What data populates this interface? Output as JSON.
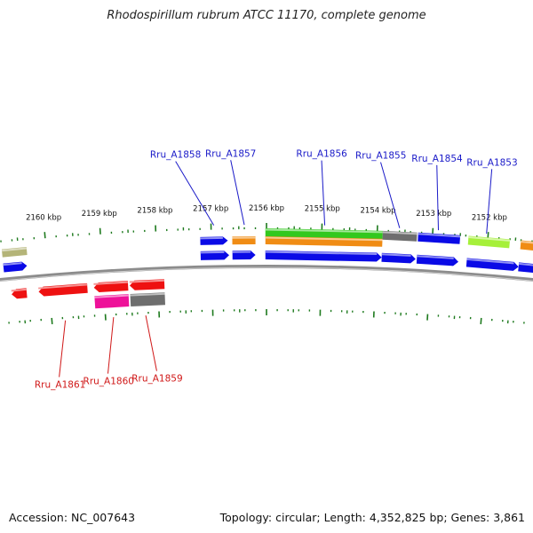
{
  "title": "Rhodospirillum rubrum ATCC 11170, complete genome",
  "accession_text": "Accession: NC_007643",
  "topology_text": "Topology: circular; Length: 4,352,825 bp; Genes: 3,861",
  "colors": {
    "forward_label": "#1a1ac8",
    "reverse_label": "#d01818",
    "tick": "#1e7a1e",
    "backbone": "#8c8c8c",
    "blue": "#0a0ae6",
    "orange": "#f08c14",
    "green": "#32c81e",
    "lime": "#a6f03a",
    "olive": "#b4b478",
    "gray": "#6e6e6e",
    "red": "#ee1111",
    "magenta": "#ee1199"
  },
  "kbp_labels": [
    {
      "kbp": 2160,
      "text": "2160 kbp"
    },
    {
      "kbp": 2159,
      "text": "2159 kbp"
    },
    {
      "kbp": 2158,
      "text": "2158 kbp"
    },
    {
      "kbp": 2157,
      "text": "2157 kbp"
    },
    {
      "kbp": 2156,
      "text": "2156 kbp"
    },
    {
      "kbp": 2155,
      "text": "2155 kbp"
    },
    {
      "kbp": 2154,
      "text": "2154 kbp"
    },
    {
      "kbp": 2153,
      "text": "2153 kbp"
    },
    {
      "kbp": 2152,
      "text": "2152 kbp"
    }
  ],
  "forward_genes": [
    {
      "start": 2160.8,
      "end": 2160.35,
      "row": 2,
      "color": "olive",
      "dir": "none"
    },
    {
      "start": 2160.8,
      "end": 2160.37,
      "row": 1,
      "color": "blue",
      "dir": "left"
    },
    {
      "start": 2157.2,
      "end": 2156.7,
      "row": 2,
      "color": "blue",
      "dir": "left"
    },
    {
      "start": 2157.2,
      "end": 2156.68,
      "row": 1,
      "color": "blue",
      "dir": "left"
    },
    {
      "start": 2156.62,
      "end": 2156.2,
      "row": 2,
      "color": "orange",
      "dir": "none"
    },
    {
      "start": 2156.62,
      "end": 2156.2,
      "row": 1,
      "color": "blue",
      "dir": "left"
    },
    {
      "start": 2156.02,
      "end": 2153.9,
      "row": 3,
      "color": "green",
      "dir": "none"
    },
    {
      "start": 2156.02,
      "end": 2153.9,
      "row": 2,
      "color": "orange",
      "dir": "none"
    },
    {
      "start": 2156.02,
      "end": 2153.9,
      "row": 1,
      "color": "blue",
      "dir": "left"
    },
    {
      "start": 2153.9,
      "end": 2153.28,
      "row": 3,
      "color": "gray",
      "dir": "none"
    },
    {
      "start": 2153.9,
      "end": 2153.28,
      "row": 1,
      "color": "blue",
      "dir": "left"
    },
    {
      "start": 2153.26,
      "end": 2152.5,
      "row": 3,
      "color": "blue",
      "dir": "none"
    },
    {
      "start": 2153.26,
      "end": 2152.5,
      "row": 1,
      "color": "blue",
      "dir": "left"
    },
    {
      "start": 2152.35,
      "end": 2151.6,
      "row": 3,
      "color": "lime",
      "dir": "none"
    },
    {
      "start": 2152.35,
      "end": 2151.4,
      "row": 1,
      "color": "blue",
      "dir": "left"
    },
    {
      "start": 2151.4,
      "end": 2150.7,
      "row": 3,
      "color": "orange",
      "dir": "none"
    },
    {
      "start": 2151.4,
      "end": 2150.7,
      "row": 1,
      "color": "blue",
      "dir": "left"
    }
  ],
  "reverse_genes": [
    {
      "start": 2160.7,
      "end": 2160.42,
      "row": 1,
      "color": "red",
      "dir": "right"
    },
    {
      "start": 2160.2,
      "end": 2159.3,
      "row": 1,
      "color": "red",
      "dir": "right"
    },
    {
      "start": 2159.18,
      "end": 2158.55,
      "row": 1,
      "color": "red",
      "dir": "right"
    },
    {
      "start": 2159.18,
      "end": 2158.55,
      "row": 2,
      "color": "magenta",
      "dir": "none"
    },
    {
      "start": 2158.52,
      "end": 2157.88,
      "row": 1,
      "color": "red",
      "dir": "right"
    },
    {
      "start": 2158.52,
      "end": 2157.88,
      "row": 2,
      "color": "gray",
      "dir": "none"
    }
  ],
  "gene_labels_forward": [
    {
      "text": "Rru_A1858",
      "gene_kbp": 2156.95,
      "label_kbp": 2157.6
    },
    {
      "text": "Rru_A1857",
      "gene_kbp": 2156.4,
      "label_kbp": 2156.63
    },
    {
      "text": "Rru_A1856",
      "gene_kbp": 2154.95,
      "label_kbp": 2155.03
    },
    {
      "text": "Rru_A1855",
      "gene_kbp": 2153.6,
      "label_kbp": 2153.99
    },
    {
      "text": "Rru_A1854",
      "gene_kbp": 2152.9,
      "label_kbp": 2153.0
    },
    {
      "text": "Rru_A1853",
      "gene_kbp": 2152.03,
      "label_kbp": 2152.03
    }
  ],
  "gene_labels_reverse": [
    {
      "text": "Rru_A1861",
      "gene_kbp": 2159.75,
      "label_kbp": 2159.95
    },
    {
      "text": "Rru_A1860",
      "gene_kbp": 2158.85,
      "label_kbp": 2159.02
    },
    {
      "text": "Rru_A1859",
      "gene_kbp": 2158.25,
      "label_kbp": 2158.09
    }
  ]
}
